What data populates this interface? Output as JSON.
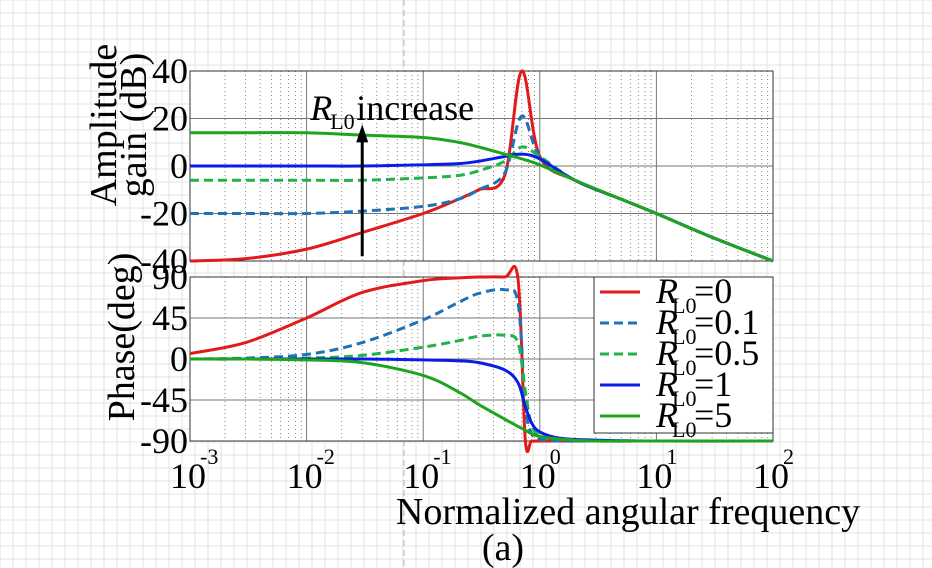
{
  "chart_data": [
    {
      "type": "line",
      "panel": "amplitude",
      "ylabel_line1": "Amplitude",
      "ylabel_line2": "gain (dB)",
      "xscale": "log",
      "xlim": [
        0.001,
        100
      ],
      "ylim": [
        -40,
        40
      ],
      "yticks": [
        "40",
        "20",
        "0",
        "-20",
        "-40"
      ],
      "grid": true,
      "annotation": {
        "symbol": "R",
        "subscript": "L0",
        "text": "increase",
        "arrow_x": 0.03,
        "arrow_from_db": -38,
        "arrow_to_db": 15
      },
      "x": [
        0.001,
        0.003,
        0.01,
        0.03,
        0.1,
        0.2,
        0.3,
        0.5,
        0.7,
        1,
        2,
        5,
        10,
        30,
        100
      ],
      "series": [
        {
          "name": "RL0=0",
          "color": "#e31a1c",
          "dash": "solid",
          "values": [
            -40,
            -39,
            -35,
            -28,
            -20,
            -14,
            -10,
            -4,
            40,
            4,
            -6,
            -14,
            -20,
            -30,
            -40
          ]
        },
        {
          "name": "RL0=0.1",
          "color": "#1f72b8",
          "dash": "dashed",
          "values": [
            -20,
            -20,
            -20,
            -19,
            -17,
            -14,
            -10,
            -3,
            21,
            4,
            -6,
            -14,
            -20,
            -30,
            -40
          ]
        },
        {
          "name": "RL0=0.5",
          "color": "#21b24a",
          "dash": "dashed",
          "values": [
            -6,
            -6,
            -6,
            -6,
            -5,
            -4,
            -2,
            2,
            8,
            4,
            -6,
            -14,
            -20,
            -30,
            -40
          ]
        },
        {
          "name": "RL0=1",
          "color": "#0a1de6",
          "dash": "solid",
          "values": [
            0,
            0,
            0,
            0,
            0.5,
            1,
            2,
            4,
            5,
            3,
            -6,
            -14,
            -20,
            -30,
            -40
          ]
        },
        {
          "name": "RL0=5",
          "color": "#1ea51e",
          "dash": "solid",
          "values": [
            14,
            14,
            14,
            13,
            12,
            10,
            8,
            5,
            3,
            0.5,
            -6,
            -14,
            -20,
            -30,
            -40
          ]
        }
      ]
    },
    {
      "type": "line",
      "panel": "phase",
      "ylabel": "Phase(deg)",
      "xlabel": "Normalized angular frequency",
      "xscale": "log",
      "xlim": [
        0.001,
        100
      ],
      "ylim": [
        -90,
        90
      ],
      "yticks": [
        "90",
        "45",
        "0",
        "-45",
        "-90"
      ],
      "xtick_base": "10",
      "xtick_exponents": [
        "-3",
        "-2",
        "-1",
        "0",
        "1",
        "2"
      ],
      "grid": true,
      "legend_placement": "right",
      "x": [
        0.001,
        0.003,
        0.01,
        0.03,
        0.1,
        0.2,
        0.3,
        0.5,
        0.65,
        0.75,
        0.85,
        1,
        1.5,
        3,
        10,
        100
      ],
      "series": [
        {
          "name": "RL0=0",
          "color": "#e31a1c",
          "dash": "solid",
          "values": [
            6,
            18,
            45,
            73,
            86,
            89,
            90,
            90,
            88,
            -88,
            -90,
            -90,
            -90,
            -90,
            -90,
            -90
          ]
        },
        {
          "name": "RL0=0.1",
          "color": "#1f72b8",
          "dash": "dashed",
          "values": [
            0,
            1,
            5,
            18,
            43,
            62,
            72,
            76,
            62,
            -50,
            -82,
            -88,
            -90,
            -90,
            -90,
            -90
          ]
        },
        {
          "name": "RL0=0.5",
          "color": "#21b24a",
          "dash": "dashed",
          "values": [
            0,
            0,
            1,
            4,
            13,
            20,
            25,
            26,
            18,
            -35,
            -72,
            -84,
            -88,
            -90,
            -90,
            -90
          ]
        },
        {
          "name": "RL0=1",
          "color": "#0a1de6",
          "dash": "solid",
          "values": [
            0,
            0,
            0,
            0,
            -1,
            -2,
            -4,
            -12,
            -26,
            -52,
            -70,
            -80,
            -87,
            -89,
            -90,
            -90
          ]
        },
        {
          "name": "RL0=5",
          "color": "#1ea51e",
          "dash": "solid",
          "values": [
            0,
            0,
            -1,
            -4,
            -18,
            -36,
            -50,
            -66,
            -74,
            -78,
            -82,
            -85,
            -88,
            -90,
            -90,
            -90
          ]
        }
      ]
    }
  ],
  "legend": [
    {
      "symbol": "R",
      "sub": "L0",
      "value": "=0",
      "color": "#e31a1c",
      "dash": "solid"
    },
    {
      "symbol": "R",
      "sub": "L0",
      "value": "=0.1",
      "color": "#1f72b8",
      "dash": "dashed"
    },
    {
      "symbol": "R",
      "sub": "L0",
      "value": "=0.5",
      "color": "#21b24a",
      "dash": "dashed"
    },
    {
      "symbol": "R",
      "sub": "L0",
      "value": "=1",
      "color": "#0a1de6",
      "dash": "solid"
    },
    {
      "symbol": "R",
      "sub": "L0",
      "value": "=5",
      "color": "#1ea51e",
      "dash": "solid"
    }
  ],
  "caption": "(a)"
}
